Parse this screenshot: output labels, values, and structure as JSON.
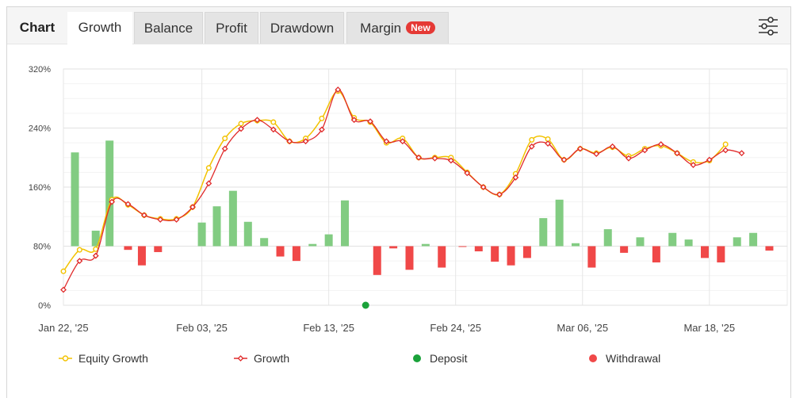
{
  "tabs": [
    {
      "label": "Chart"
    },
    {
      "label": "Growth"
    },
    {
      "label": "Balance"
    },
    {
      "label": "Profit"
    },
    {
      "label": "Drawdown"
    },
    {
      "label": "Margin",
      "badge": "New"
    }
  ],
  "icons": {
    "settings": "sliders-icon"
  },
  "colors": {
    "equity": "#f2c200",
    "growth": "#e02a2a",
    "deposit": "#1aa23a",
    "withdrawal": "#f04848",
    "bar_positive": "#82cc82",
    "bar_negative": "#f04848"
  },
  "legend": [
    {
      "label": "Equity Growth"
    },
    {
      "label": "Growth"
    },
    {
      "label": "Deposit"
    },
    {
      "label": "Withdrawal"
    }
  ],
  "chart_data": {
    "type": "line",
    "ylim": [
      0,
      320
    ],
    "xlim": [
      0,
      62
    ],
    "y_ticks": [
      {
        "value": 0,
        "label": "0%"
      },
      {
        "value": 80,
        "label": "80%"
      },
      {
        "value": 160,
        "label": "160%"
      },
      {
        "value": 240,
        "label": "240%"
      },
      {
        "value": 320,
        "label": "320%"
      }
    ],
    "x_ticks": [
      {
        "index": 0,
        "label": "Jan 22, '25"
      },
      {
        "index": 12,
        "label": "Feb 03, '25"
      },
      {
        "index": 23,
        "label": "Feb 13, '25"
      },
      {
        "index": 34,
        "label": "Feb 24, '25"
      },
      {
        "index": 45,
        "label": "Mar 06, '25"
      },
      {
        "index": 56,
        "label": "Mar 18, '25"
      }
    ],
    "series": [
      {
        "name": "Equity Growth",
        "points": [
          [
            0,
            46
          ],
          [
            1.4,
            75
          ],
          [
            2.8,
            76
          ],
          [
            4.2,
            143
          ],
          [
            5.6,
            136
          ],
          [
            7,
            122
          ],
          [
            8.4,
            117
          ],
          [
            9.8,
            117
          ],
          [
            11.2,
            133
          ],
          [
            12.6,
            186
          ],
          [
            14,
            226
          ],
          [
            15.4,
            246
          ],
          [
            16.8,
            250
          ],
          [
            18.2,
            248
          ],
          [
            19.6,
            222
          ],
          [
            21,
            226
          ],
          [
            22.4,
            253
          ],
          [
            23.8,
            290
          ],
          [
            25.2,
            254
          ],
          [
            26.6,
            248
          ],
          [
            28,
            220
          ],
          [
            29.4,
            226
          ],
          [
            30.8,
            200
          ],
          [
            32.2,
            200
          ],
          [
            33.6,
            200
          ],
          [
            35,
            180
          ],
          [
            36.4,
            160
          ],
          [
            37.8,
            150
          ],
          [
            39.2,
            178
          ],
          [
            40.6,
            224
          ],
          [
            42,
            225
          ],
          [
            43.4,
            197
          ],
          [
            44.8,
            212
          ],
          [
            46.2,
            206
          ],
          [
            47.6,
            214
          ],
          [
            49,
            202
          ],
          [
            50.4,
            212
          ],
          [
            51.8,
            216
          ],
          [
            53.2,
            206
          ],
          [
            54.6,
            194
          ],
          [
            56,
            196
          ],
          [
            57.4,
            218
          ]
        ]
      },
      {
        "name": "Growth",
        "points": [
          [
            0,
            21
          ],
          [
            1.4,
            60
          ],
          [
            2.8,
            67
          ],
          [
            4.2,
            140
          ],
          [
            5.6,
            137
          ],
          [
            7,
            122
          ],
          [
            8.4,
            116
          ],
          [
            9.8,
            116
          ],
          [
            11.2,
            133
          ],
          [
            12.6,
            165
          ],
          [
            14,
            212
          ],
          [
            15.4,
            239
          ],
          [
            16.8,
            251
          ],
          [
            18.2,
            238
          ],
          [
            19.6,
            222
          ],
          [
            21,
            222
          ],
          [
            22.4,
            238
          ],
          [
            23.8,
            292
          ],
          [
            25.2,
            251
          ],
          [
            26.6,
            249
          ],
          [
            28,
            222
          ],
          [
            29.4,
            222
          ],
          [
            30.8,
            200
          ],
          [
            32.2,
            199
          ],
          [
            33.6,
            196
          ],
          [
            35,
            179
          ],
          [
            36.4,
            160
          ],
          [
            37.8,
            150
          ],
          [
            39.2,
            173
          ],
          [
            40.6,
            215
          ],
          [
            42,
            219
          ],
          [
            43.4,
            197
          ],
          [
            44.8,
            212
          ],
          [
            46.2,
            205
          ],
          [
            47.6,
            215
          ],
          [
            49,
            199
          ],
          [
            50.4,
            210
          ],
          [
            51.8,
            218
          ],
          [
            53.2,
            206
          ],
          [
            54.6,
            190
          ],
          [
            56,
            197
          ],
          [
            57.4,
            210
          ],
          [
            58.8,
            206
          ]
        ]
      }
    ],
    "bars": [
      {
        "x": 1,
        "value": 127
      },
      {
        "x": 2.8,
        "value": 21
      },
      {
        "x": 4,
        "value": 143
      },
      {
        "x": 5.6,
        "value": -5
      },
      {
        "x": 6.8,
        "value": -26
      },
      {
        "x": 8.2,
        "value": -8
      },
      {
        "x": 12,
        "value": 32
      },
      {
        "x": 13.3,
        "value": 54
      },
      {
        "x": 14.7,
        "value": 75
      },
      {
        "x": 16,
        "value": 33
      },
      {
        "x": 17.4,
        "value": 11
      },
      {
        "x": 18.8,
        "value": -14
      },
      {
        "x": 20.2,
        "value": -20
      },
      {
        "x": 21.6,
        "value": 3
      },
      {
        "x": 23,
        "value": 16
      },
      {
        "x": 24.4,
        "value": 62
      },
      {
        "x": 27.2,
        "value": -39
      },
      {
        "x": 28.6,
        "value": -3
      },
      {
        "x": 30,
        "value": -32
      },
      {
        "x": 31.4,
        "value": 3
      },
      {
        "x": 32.8,
        "value": -29
      },
      {
        "x": 34.6,
        "value": -1
      },
      {
        "x": 36,
        "value": -7
      },
      {
        "x": 37.4,
        "value": -21
      },
      {
        "x": 38.8,
        "value": -26
      },
      {
        "x": 40.2,
        "value": -16
      },
      {
        "x": 41.6,
        "value": 38
      },
      {
        "x": 43,
        "value": 63
      },
      {
        "x": 44.4,
        "value": 4
      },
      {
        "x": 45.8,
        "value": -29
      },
      {
        "x": 47.2,
        "value": 23
      },
      {
        "x": 48.6,
        "value": -9
      },
      {
        "x": 50,
        "value": 12
      },
      {
        "x": 51.4,
        "value": -22
      },
      {
        "x": 52.8,
        "value": 18
      },
      {
        "x": 54.2,
        "value": 9
      },
      {
        "x": 55.6,
        "value": -16
      },
      {
        "x": 57,
        "value": -22
      },
      {
        "x": 58.4,
        "value": 12
      },
      {
        "x": 59.8,
        "value": 18
      },
      {
        "x": 61.2,
        "value": -6
      }
    ],
    "deposits": [
      {
        "x": 26.2,
        "value": 0
      }
    ],
    "withdrawals": []
  }
}
